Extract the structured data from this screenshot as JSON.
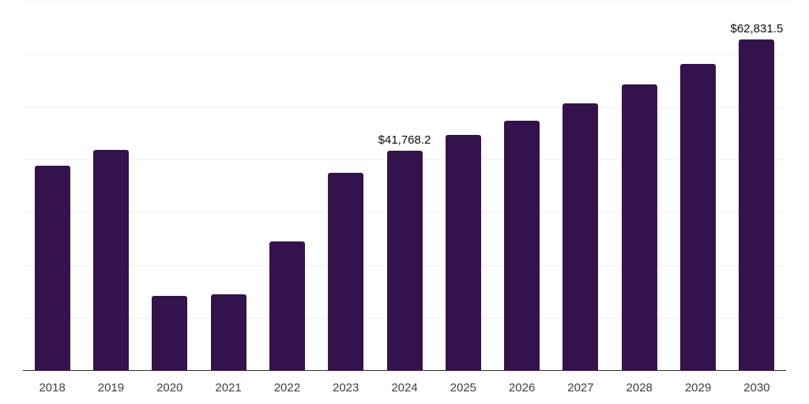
{
  "chart_data": {
    "type": "bar",
    "title": "",
    "xlabel": "",
    "ylabel": "",
    "categories": [
      "2018",
      "2019",
      "2020",
      "2021",
      "2022",
      "2023",
      "2024",
      "2025",
      "2026",
      "2027",
      "2028",
      "2029",
      "2030"
    ],
    "values": [
      38900,
      41900,
      14250,
      14500,
      24500,
      37550,
      41768.2,
      44800,
      47500,
      50700,
      54300,
      58300,
      62831.5
    ],
    "point_labels": [
      "",
      "",
      "",
      "",
      "",
      "",
      "$41,768.2",
      "",
      "",
      "",
      "",
      "",
      "$62,831.5"
    ],
    "ylim": [
      0,
      70000
    ],
    "grid_step": 10000,
    "grid": true,
    "legend": false,
    "y_axis_labels_visible": false,
    "colors": {
      "bar": "#34124B",
      "gridline": "#f0f0f1",
      "axis_line": "#2f2f2f",
      "tick_label": "#404040",
      "data_label": "#0d0d0d",
      "background": "#ffffff"
    }
  }
}
